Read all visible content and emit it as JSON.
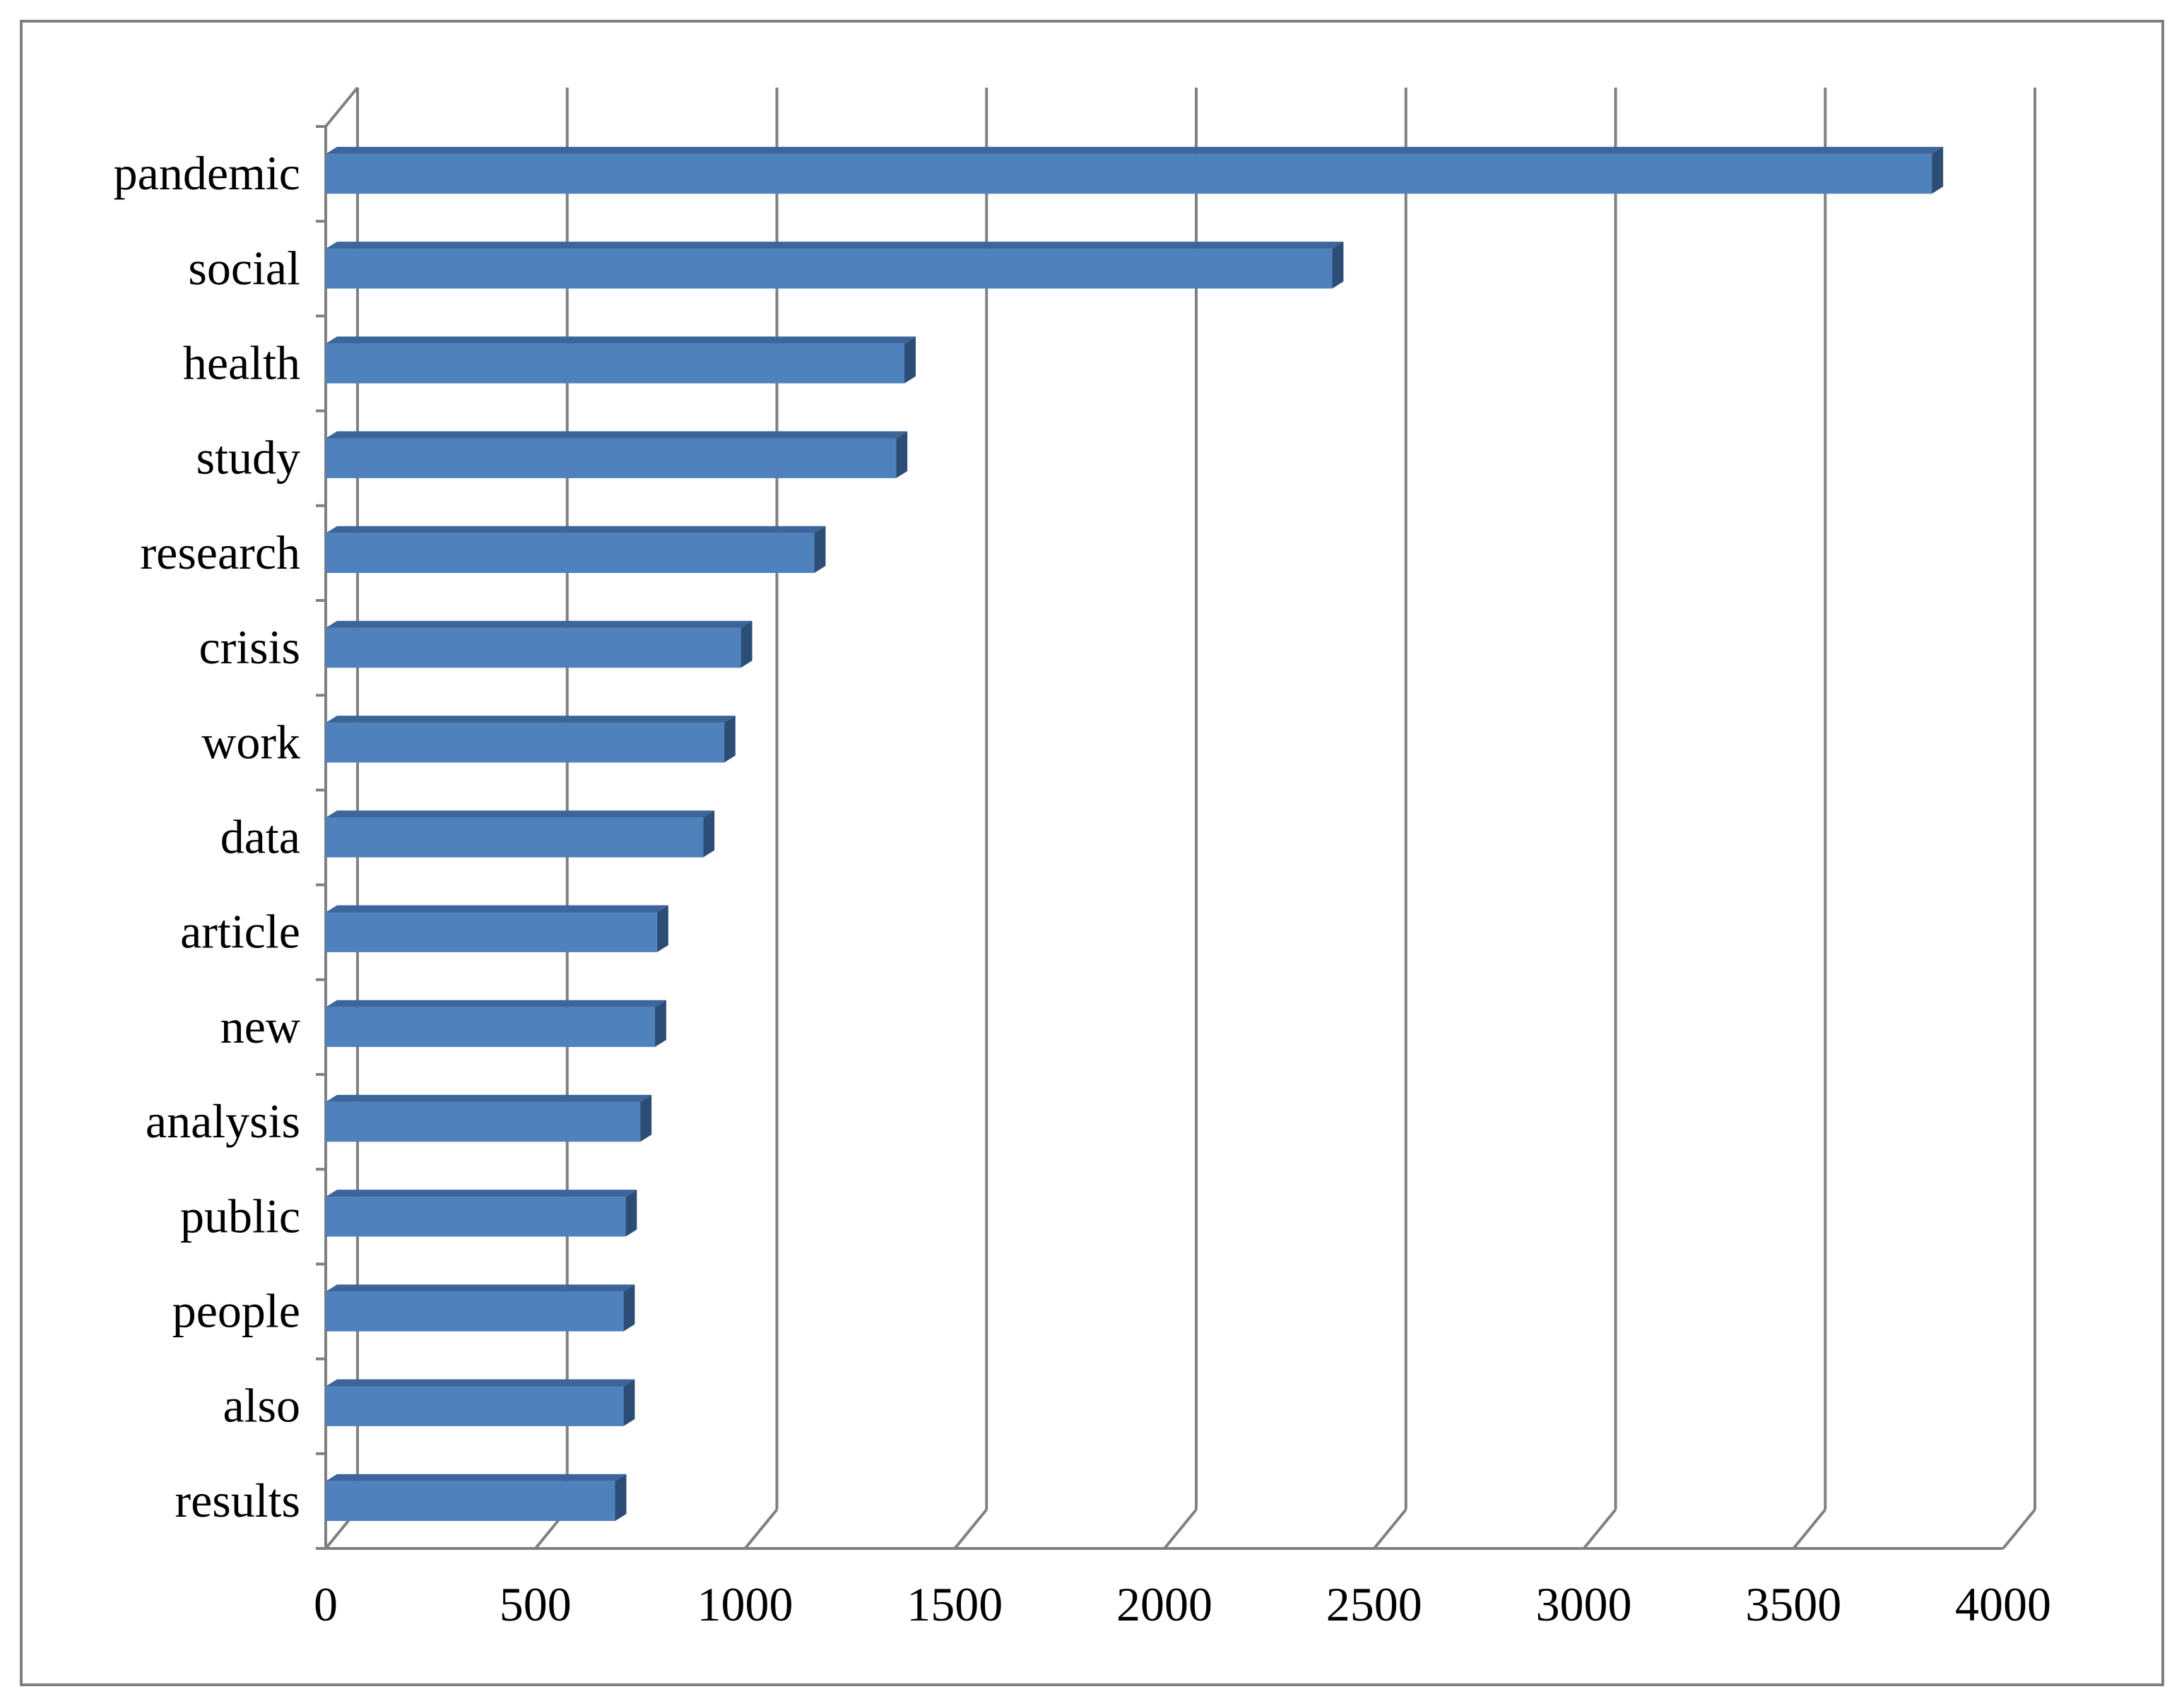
{
  "chart_data": {
    "type": "bar",
    "orientation": "horizontal",
    "style": "3d",
    "title": "",
    "xlabel": "",
    "ylabel": "",
    "categories": [
      "pandemic",
      "social",
      "health",
      "study",
      "research",
      "crisis",
      "work",
      "data",
      "article",
      "new",
      "analysis",
      "public",
      "people",
      "also",
      "results"
    ],
    "values": [
      3830,
      2400,
      1380,
      1360,
      1165,
      990,
      950,
      900,
      790,
      785,
      750,
      715,
      710,
      710,
      690
    ],
    "xlim": [
      0,
      4000
    ],
    "xticks": [
      0,
      500,
      1000,
      1500,
      2000,
      2500,
      3000,
      3500,
      4000
    ],
    "xtick_labels": [
      "0",
      "500",
      "1000",
      "1500",
      "2000",
      "2500",
      "3000",
      "3500",
      "4000"
    ],
    "grid": true,
    "legend": "none",
    "colors": {
      "bar_front": "#4f81bd",
      "bar_top": "#3c669b",
      "bar_side": "#2c4d75",
      "gridline": "#808080",
      "frame": "#7f7f7f"
    }
  }
}
